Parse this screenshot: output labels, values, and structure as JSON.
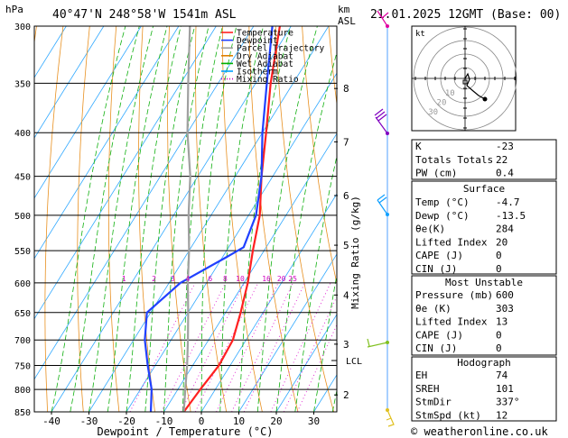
{
  "header": {
    "location": "40°47'N  248°58'W  1541m  ASL",
    "run": "21.01.2025  12GMT  (Base: 00)",
    "hpa_label": "hPa",
    "km_label": "km",
    "asl_label": "ASL"
  },
  "legend": [
    {
      "label": "Temperature",
      "color": "#ff2020",
      "style": "solid"
    },
    {
      "label": "Dewpoint",
      "color": "#2040ff",
      "style": "solid"
    },
    {
      "label": "Parcel Trajectory",
      "color": "#a0a0a0",
      "style": "solid"
    },
    {
      "label": "Dry Adiabat",
      "color": "#e08000",
      "style": "solid"
    },
    {
      "label": "Wet Adiabat",
      "color": "#00b000",
      "style": "solid"
    },
    {
      "label": "Isotherm",
      "color": "#00a0ff",
      "style": "solid"
    },
    {
      "label": "Mixing Ratio",
      "color": "#d000c0",
      "style": "dotted"
    }
  ],
  "chart_data": {
    "type": "line",
    "xlabel": "Dewpoint / Temperature (°C)",
    "ylabel": "",
    "y2label": "Mixing Ratio (g/kg)",
    "xlim": [
      -45,
      35
    ],
    "ylim_hpa": [
      850,
      300
    ],
    "x_ticks": [
      -40,
      -30,
      -20,
      -10,
      0,
      10,
      20,
      30
    ],
    "pressure_ticks": [
      300,
      350,
      400,
      450,
      500,
      550,
      600,
      650,
      700,
      750,
      800,
      850
    ],
    "km_ticks": [
      {
        "km": "2",
        "p": 812
      },
      {
        "km": "3",
        "p": 708
      },
      {
        "km": "4",
        "p": 620
      },
      {
        "km": "5",
        "p": 542
      },
      {
        "km": "6",
        "p": 474
      },
      {
        "km": "7",
        "p": 410
      },
      {
        "km": "8",
        "p": 355
      }
    ],
    "lcl": {
      "label": "LCL",
      "p": 740
    },
    "mixing_ratio_labels": [
      {
        "label": "1",
        "x": -11
      },
      {
        "label": "2",
        "x": -3
      },
      {
        "label": "3",
        "x": 2
      },
      {
        "label": "4",
        "x": 6
      },
      {
        "label": "6",
        "x": 12
      },
      {
        "label": "8",
        "x": 16
      },
      {
        "label": "10",
        "x": 20
      },
      {
        "label": "16",
        "x": 27
      },
      {
        "label": "20",
        "x": 31
      },
      {
        "label": "25",
        "x": 34
      }
    ],
    "series": [
      {
        "name": "Temperature",
        "color": "#ff2020",
        "points": [
          [
            850,
            -4.7
          ],
          [
            800,
            -4
          ],
          [
            750,
            -3
          ],
          [
            700,
            -3.5
          ],
          [
            650,
            -6
          ],
          [
            600,
            -9
          ],
          [
            550,
            -13
          ],
          [
            500,
            -17
          ],
          [
            450,
            -23
          ],
          [
            400,
            -29
          ],
          [
            350,
            -36
          ],
          [
            300,
            -43
          ]
        ]
      },
      {
        "name": "Dewpoint",
        "color": "#2040ff",
        "points": [
          [
            850,
            -13.5
          ],
          [
            800,
            -17
          ],
          [
            750,
            -22
          ],
          [
            700,
            -27
          ],
          [
            650,
            -31
          ],
          [
            600,
            -27
          ],
          [
            560,
            -19
          ],
          [
            545,
            -16
          ],
          [
            500,
            -18
          ],
          [
            450,
            -23
          ],
          [
            400,
            -30
          ],
          [
            350,
            -37
          ],
          [
            300,
            -45
          ]
        ]
      },
      {
        "name": "Parcel Trajectory",
        "color": "#a0a0a0",
        "points": [
          [
            850,
            -4.7
          ],
          [
            800,
            -8
          ],
          [
            750,
            -11.5
          ],
          [
            700,
            -15.5
          ],
          [
            650,
            -20
          ],
          [
            600,
            -25
          ],
          [
            550,
            -30
          ],
          [
            500,
            -36
          ],
          [
            450,
            -42
          ],
          [
            400,
            -50
          ],
          [
            350,
            -58
          ],
          [
            300,
            -67
          ]
        ]
      }
    ]
  },
  "stats": {
    "rows1": [
      {
        "label": "K",
        "value": "-23"
      },
      {
        "label": "Totals Totals",
        "value": "22"
      },
      {
        "label": "PW (cm)",
        "value": "0.4"
      }
    ],
    "surface_title": "Surface",
    "surface": [
      {
        "label": "Temp (°C)",
        "value": "-4.7"
      },
      {
        "label": "Dewp (°C)",
        "value": "-13.5"
      },
      {
        "label": "θe(K)",
        "value": "284"
      },
      {
        "label": "Lifted Index",
        "value": "20"
      },
      {
        "label": "CAPE (J)",
        "value": "0"
      },
      {
        "label": "CIN (J)",
        "value": "0"
      }
    ],
    "unstable_title": "Most Unstable",
    "unstable": [
      {
        "label": "Pressure (mb)",
        "value": "600"
      },
      {
        "label": "θe (K)",
        "value": "303"
      },
      {
        "label": "Lifted Index",
        "value": "13"
      },
      {
        "label": "CAPE (J)",
        "value": "0"
      },
      {
        "label": "CIN (J)",
        "value": "0"
      }
    ],
    "hodo_title": "Hodograph",
    "hodo": [
      {
        "label": "EH",
        "value": "74"
      },
      {
        "label": "SREH",
        "value": "101"
      },
      {
        "label": "StmDir",
        "value": "337°"
      },
      {
        "label": "StmSpd (kt)",
        "value": "12"
      }
    ]
  },
  "hodograph": {
    "unit_label": "kt",
    "ring_labels": [
      "10",
      "20",
      "30"
    ]
  },
  "credit": "© weatheronline.co.uk"
}
